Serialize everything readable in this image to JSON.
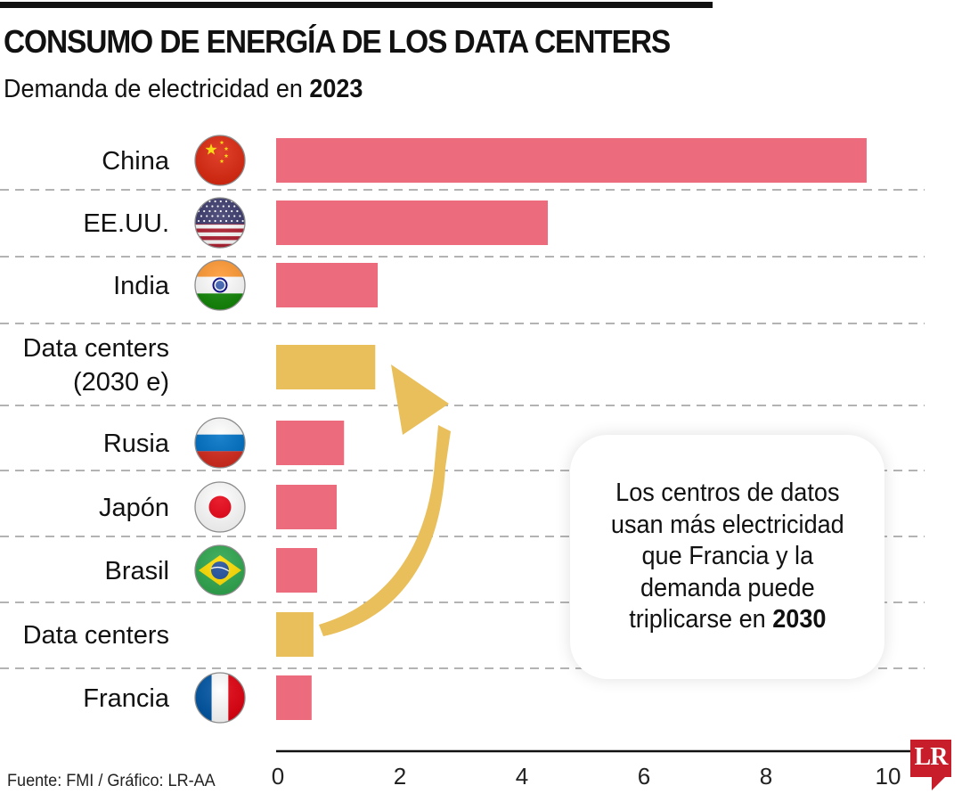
{
  "header": {
    "title": "CONSUMO DE ENERGÍA DE LOS DATA CENTERS",
    "subtitle_prefix": "Demanda de electricidad en ",
    "subtitle_year": "2023"
  },
  "annotation": {
    "lines": [
      "Los centros de datos",
      "usan más electricidad",
      "que Francia y la",
      "demanda puede"
    ],
    "last_line_prefix": "triplicarse en ",
    "last_line_bold": "2030"
  },
  "footer": {
    "source": "Fuente: FMI / Gráfico: LR-AA",
    "logo": "LR"
  },
  "colors": {
    "country_bar": "#EC6C7E",
    "data_center_bar": "#E9BF5B",
    "logo_red": "#C81E2B"
  },
  "chart_data": {
    "type": "bar",
    "orientation": "horizontal",
    "title": "CONSUMO DE ENERGÍA DE LOS DATA CENTERS",
    "subtitle": "Demanda de electricidad en 2023",
    "xlabel": "",
    "ylabel": "",
    "xlim": [
      0,
      10
    ],
    "xticks": [
      0,
      2,
      4,
      6,
      8,
      10
    ],
    "grid": "horizontal dashed separators",
    "categories": [
      {
        "label": [
          "China"
        ],
        "flag": "china-flag-icon",
        "kind": "country",
        "value": 9.65
      },
      {
        "label": [
          "EE.UU."
        ],
        "flag": "usa-flag-icon",
        "kind": "country",
        "value": 4.44
      },
      {
        "label": [
          "India"
        ],
        "flag": "india-flag-icon",
        "kind": "country",
        "value": 1.66
      },
      {
        "label": [
          "Data centers",
          "(2030 e)"
        ],
        "flag": null,
        "kind": "datacenter",
        "value": 1.62
      },
      {
        "label": [
          "Rusia"
        ],
        "flag": "russia-flag-icon",
        "kind": "country",
        "value": 1.11
      },
      {
        "label": [
          "Japón"
        ],
        "flag": "japan-flag-icon",
        "kind": "country",
        "value": 0.99
      },
      {
        "label": [
          "Brasil"
        ],
        "flag": "brazil-flag-icon",
        "kind": "country",
        "value": 0.67
      },
      {
        "label": [
          "Data centers"
        ],
        "flag": null,
        "kind": "datacenter",
        "value": 0.61
      },
      {
        "label": [
          "Francia"
        ],
        "flag": "france-flag-icon",
        "kind": "country",
        "value": 0.58
      }
    ],
    "annotation_arrow": "from Data centers (2023) bar to Data centers (2030 e) bar"
  }
}
